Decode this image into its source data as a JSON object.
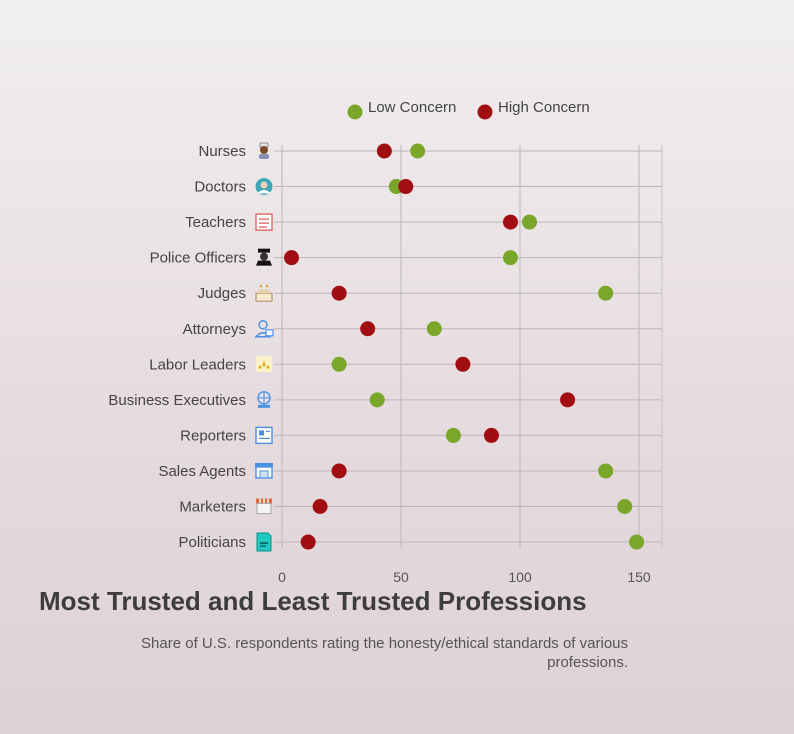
{
  "chart_data": {
    "type": "scatter",
    "title": "Most Trusted and Least Trusted Professions",
    "subtitle": "Share of U.S. respondents rating the honesty/ethical standards of various professions.",
    "xlim": [
      0,
      160
    ],
    "xticks": [
      0,
      50,
      100,
      150
    ],
    "grid": true,
    "legend_position": "top",
    "categories": [
      "Nurses",
      "Doctors",
      "Teachers",
      "Police Officers",
      "Judges",
      "Attorneys",
      "Labor Leaders",
      "Business Executives",
      "Reporters",
      "Sales Agents",
      "Marketers",
      "Politicians"
    ],
    "series": [
      {
        "name": "Low Concern",
        "color": "#7aa62a",
        "values": [
          57,
          48,
          104,
          96,
          136,
          64,
          24,
          40,
          72,
          136,
          144,
          149
        ]
      },
      {
        "name": "High Concern",
        "color": "#a10e12",
        "values": [
          43,
          52,
          96,
          4,
          24,
          36,
          76,
          120,
          88,
          24,
          16,
          11
        ]
      }
    ],
    "category_icons": [
      "nurse-icon",
      "doctor-icon",
      "teacher-icon",
      "police-officer-icon",
      "judge-icon",
      "attorney-icon",
      "labor-leader-icon",
      "business-executive-icon",
      "reporter-icon",
      "sales-agent-icon",
      "marketer-icon",
      "politician-icon"
    ]
  }
}
